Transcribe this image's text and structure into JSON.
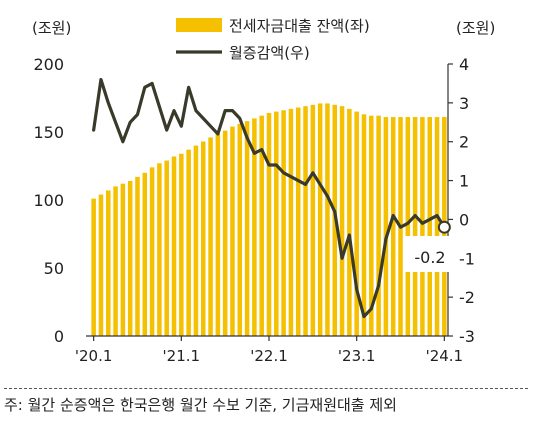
{
  "chart_data": {
    "type": "bar+line",
    "left_unit": "(조원)",
    "right_unit": "(조원)",
    "legend": [
      {
        "name": "전세자금대출 잔액(좌)",
        "color": "#F5C000",
        "marker": "bar"
      },
      {
        "name": "월증감액(우)",
        "color": "#3A3A2A",
        "marker": "line"
      }
    ],
    "left_axis": {
      "min": 0,
      "max": 200,
      "ticks": [
        0,
        50,
        100,
        150,
        200
      ]
    },
    "right_axis": {
      "min": -3,
      "max": 4,
      "ticks": [
        -3,
        -2,
        -1,
        0,
        1,
        2,
        3,
        4
      ]
    },
    "x_tick_labels": [
      "'20.1",
      "'21.1",
      "'22.1",
      "'23.1",
      "'24.1"
    ],
    "x_tick_index": [
      0,
      12,
      24,
      36,
      48
    ],
    "series": [
      {
        "name": "전세자금대출 잔액(좌)",
        "axis": "left",
        "type": "bar",
        "values": [
          101,
          104,
          107,
          110,
          112,
          114,
          117,
          120,
          124,
          127,
          129,
          132,
          134,
          137,
          140,
          143,
          146,
          149,
          151,
          154,
          156,
          158,
          160,
          162,
          164,
          165,
          166,
          167,
          168,
          169,
          170,
          171,
          171,
          170,
          169,
          167,
          165,
          163,
          162,
          162,
          161,
          161,
          161,
          161,
          161,
          161,
          161,
          161,
          161
        ]
      },
      {
        "name": "월증감액(우)",
        "axis": "right",
        "type": "line",
        "values": [
          2.3,
          3.6,
          3.0,
          2.5,
          2.0,
          2.5,
          2.7,
          3.4,
          3.5,
          2.9,
          2.3,
          2.8,
          2.4,
          3.4,
          2.8,
          2.6,
          2.4,
          2.2,
          2.8,
          2.8,
          2.6,
          2.1,
          1.7,
          1.8,
          1.4,
          1.4,
          1.2,
          1.1,
          1.0,
          0.9,
          1.2,
          0.9,
          0.6,
          0.2,
          -1.0,
          -0.4,
          -1.8,
          -2.5,
          -2.3,
          -1.7,
          -0.5,
          0.1,
          -0.2,
          -0.1,
          0.1,
          -0.1,
          0.0,
          0.1,
          -0.2
        ]
      }
    ],
    "annotation": {
      "text": "-0.2",
      "index": 48
    }
  },
  "footnote": "주: 월간 순증액은 한국은행 월간 수보 기준, 기금재원대출 제외"
}
